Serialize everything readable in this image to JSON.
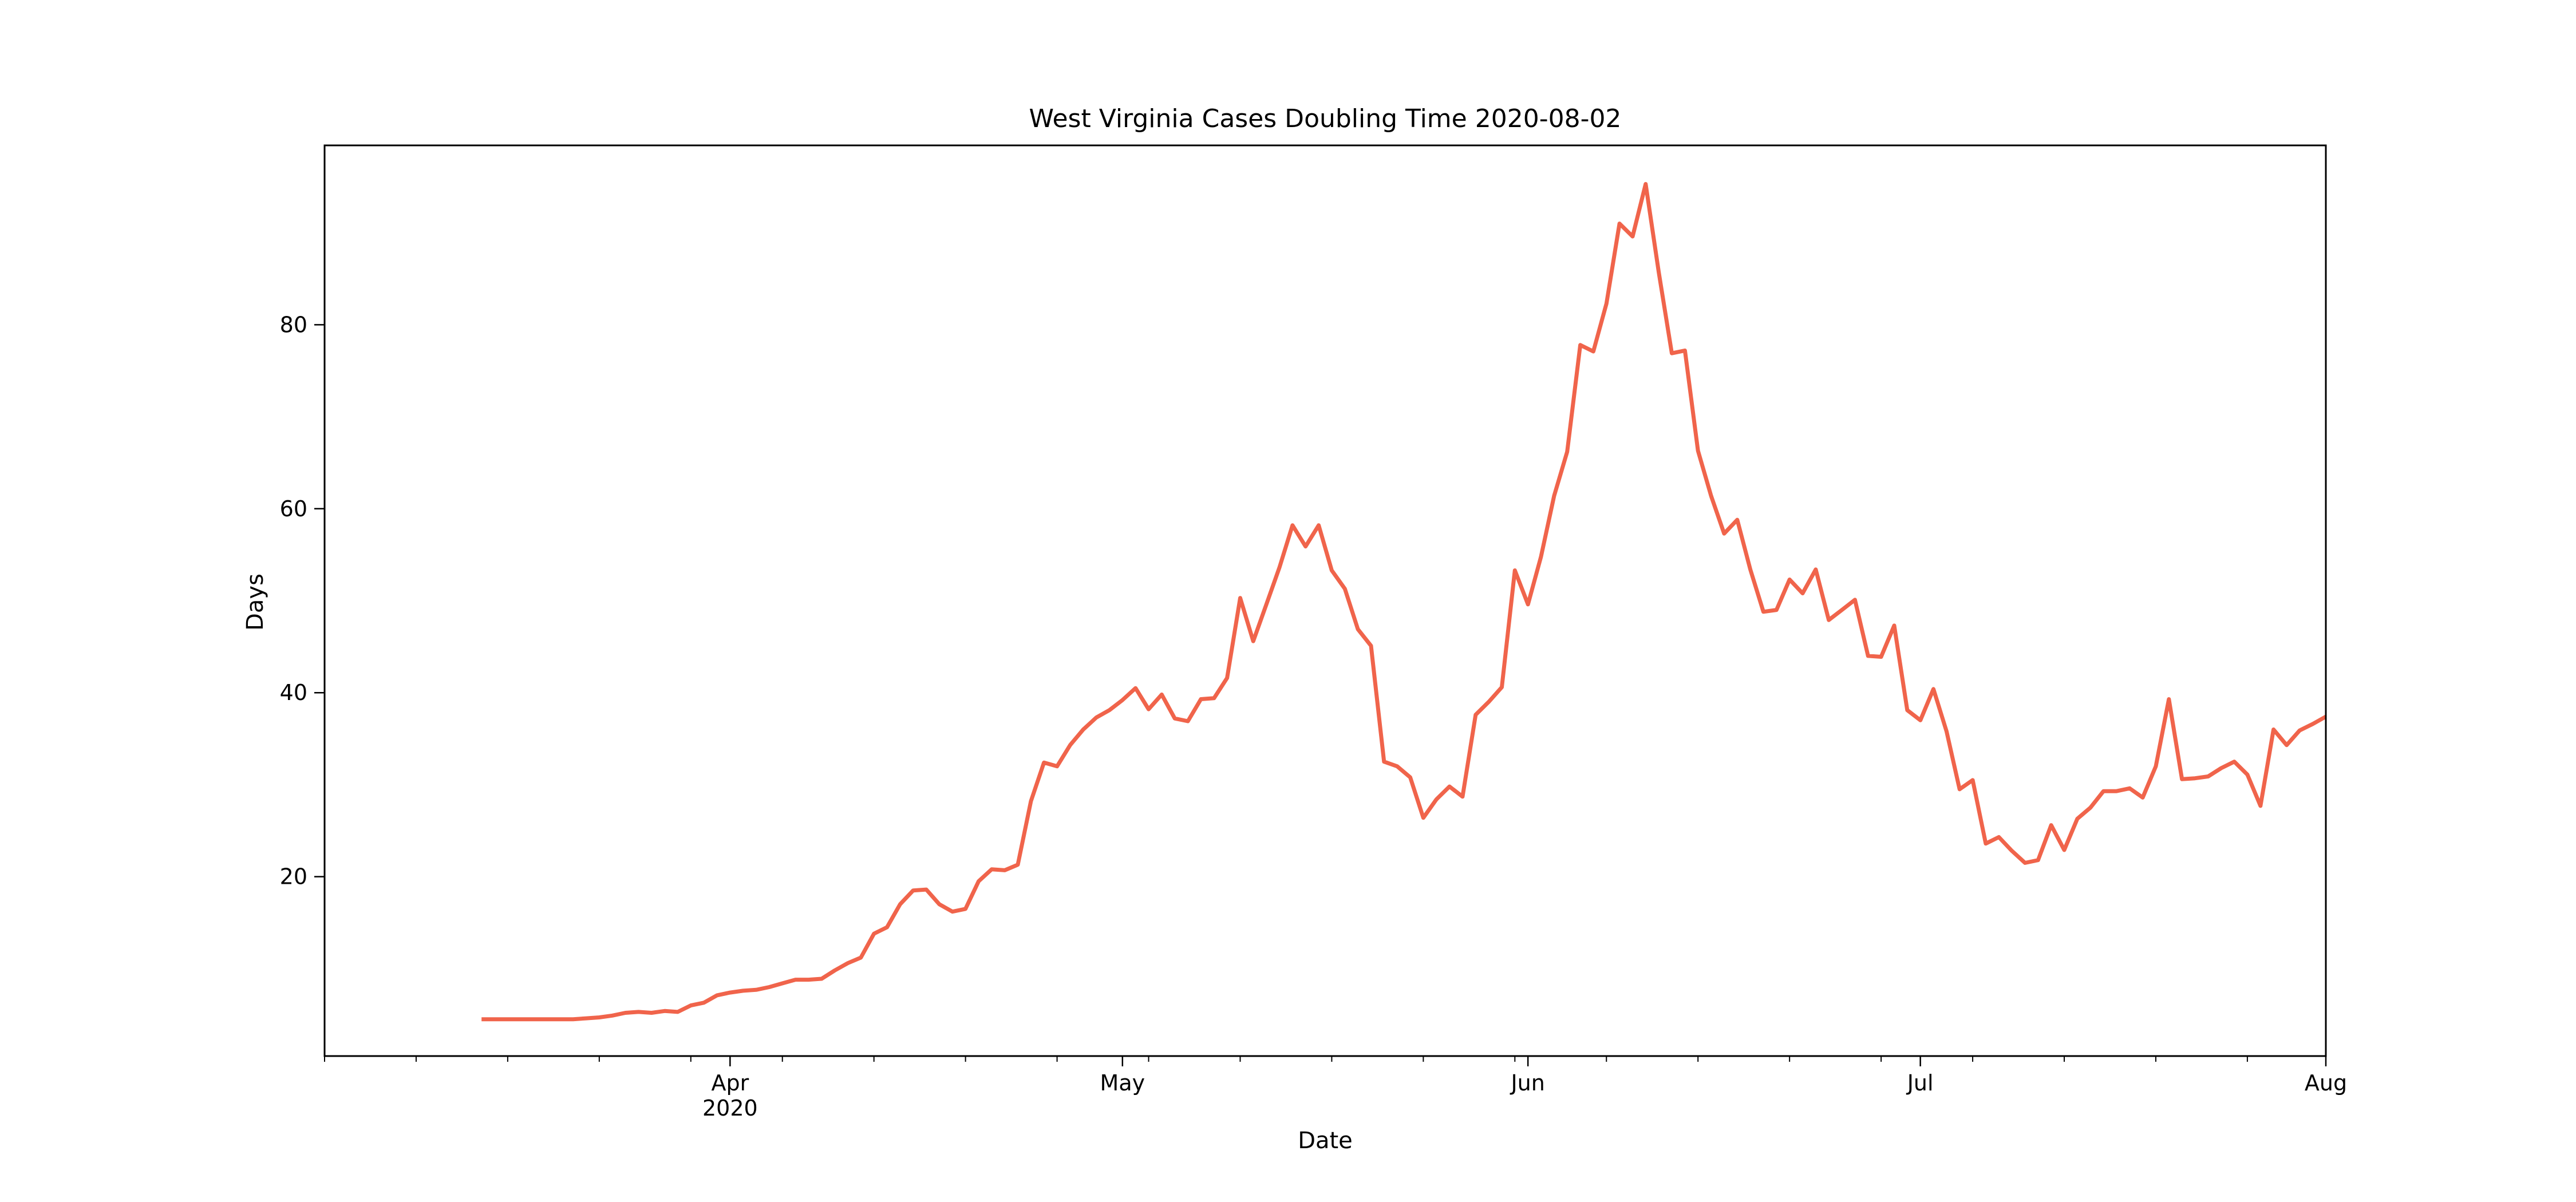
{
  "chart_data": {
    "type": "line",
    "title": "West Virginia Cases Doubling Time 2020-08-02",
    "xlabel": "Date",
    "ylabel": "Days",
    "xlim": [
      "2020-03-01",
      "2020-08-01"
    ],
    "ylim": [
      0.5,
      99.5
    ],
    "grid": false,
    "legend": "none",
    "x_ticks": [
      {
        "date": "2020-04-01",
        "label": "Apr",
        "sublabel": "2020"
      },
      {
        "date": "2020-05-01",
        "label": "May",
        "sublabel": ""
      },
      {
        "date": "2020-06-01",
        "label": "Jun",
        "sublabel": ""
      },
      {
        "date": "2020-07-01",
        "label": "Jul",
        "sublabel": ""
      },
      {
        "date": "2020-08-01",
        "label": "Aug",
        "sublabel": ""
      }
    ],
    "y_ticks": [
      20,
      40,
      60,
      80
    ],
    "series": [
      {
        "color": "#f0644b",
        "points": [
          [
            "2020-03-13",
            4.5
          ],
          [
            "2020-03-14",
            4.5
          ],
          [
            "2020-03-15",
            4.5
          ],
          [
            "2020-03-16",
            4.5
          ],
          [
            "2020-03-17",
            4.5
          ],
          [
            "2020-03-18",
            4.5
          ],
          [
            "2020-03-19",
            4.5
          ],
          [
            "2020-03-20",
            4.5
          ],
          [
            "2020-03-21",
            4.6
          ],
          [
            "2020-03-22",
            4.7
          ],
          [
            "2020-03-23",
            4.9
          ],
          [
            "2020-03-24",
            5.2
          ],
          [
            "2020-03-25",
            5.3
          ],
          [
            "2020-03-26",
            5.2
          ],
          [
            "2020-03-27",
            5.4
          ],
          [
            "2020-03-28",
            5.3
          ],
          [
            "2020-03-29",
            6.0
          ],
          [
            "2020-03-30",
            6.3
          ],
          [
            "2020-03-31",
            7.1
          ],
          [
            "2020-04-01",
            7.4
          ],
          [
            "2020-04-02",
            7.6
          ],
          [
            "2020-04-03",
            7.7
          ],
          [
            "2020-04-04",
            8.0
          ],
          [
            "2020-04-05",
            8.4
          ],
          [
            "2020-04-06",
            8.8
          ],
          [
            "2020-04-07",
            8.8
          ],
          [
            "2020-04-08",
            8.9
          ],
          [
            "2020-04-09",
            9.8
          ],
          [
            "2020-04-10",
            10.6
          ],
          [
            "2020-04-11",
            11.2
          ],
          [
            "2020-04-12",
            13.8
          ],
          [
            "2020-04-13",
            14.5
          ],
          [
            "2020-04-14",
            17.0
          ],
          [
            "2020-04-15",
            18.5
          ],
          [
            "2020-04-16",
            18.6
          ],
          [
            "2020-04-17",
            17.0
          ],
          [
            "2020-04-18",
            16.2
          ],
          [
            "2020-04-19",
            16.5
          ],
          [
            "2020-04-20",
            19.5
          ],
          [
            "2020-04-21",
            20.8
          ],
          [
            "2020-04-22",
            20.7
          ],
          [
            "2020-04-23",
            21.3
          ],
          [
            "2020-04-24",
            28.2
          ],
          [
            "2020-04-25",
            32.4
          ],
          [
            "2020-04-26",
            32.0
          ],
          [
            "2020-04-27",
            34.3
          ],
          [
            "2020-04-28",
            36.0
          ],
          [
            "2020-04-29",
            37.3
          ],
          [
            "2020-04-30",
            38.1
          ],
          [
            "2020-05-01",
            39.2
          ],
          [
            "2020-05-02",
            40.5
          ],
          [
            "2020-05-03",
            38.2
          ],
          [
            "2020-05-04",
            39.8
          ],
          [
            "2020-05-05",
            37.2
          ],
          [
            "2020-05-06",
            36.9
          ],
          [
            "2020-05-07",
            39.3
          ],
          [
            "2020-05-08",
            39.4
          ],
          [
            "2020-05-09",
            41.6
          ],
          [
            "2020-05-10",
            50.3
          ],
          [
            "2020-05-11",
            45.6
          ],
          [
            "2020-05-12",
            49.6
          ],
          [
            "2020-05-13",
            53.6
          ],
          [
            "2020-05-14",
            58.2
          ],
          [
            "2020-05-15",
            55.9
          ],
          [
            "2020-05-16",
            58.2
          ],
          [
            "2020-05-17",
            53.3
          ],
          [
            "2020-05-18",
            51.3
          ],
          [
            "2020-05-19",
            46.9
          ],
          [
            "2020-05-20",
            45.1
          ],
          [
            "2020-05-21",
            32.5
          ],
          [
            "2020-05-22",
            32.0
          ],
          [
            "2020-05-23",
            30.8
          ],
          [
            "2020-05-24",
            26.4
          ],
          [
            "2020-05-25",
            28.4
          ],
          [
            "2020-05-26",
            29.8
          ],
          [
            "2020-05-27",
            28.7
          ],
          [
            "2020-05-28",
            37.6
          ],
          [
            "2020-05-29",
            39.0
          ],
          [
            "2020-05-30",
            40.6
          ],
          [
            "2020-05-31",
            53.3
          ],
          [
            "2020-06-01",
            49.6
          ],
          [
            "2020-06-02",
            54.8
          ],
          [
            "2020-06-03",
            61.4
          ],
          [
            "2020-06-04",
            66.2
          ],
          [
            "2020-06-05",
            77.8
          ],
          [
            "2020-06-06",
            77.1
          ],
          [
            "2020-06-07",
            82.3
          ],
          [
            "2020-06-08",
            91.0
          ],
          [
            "2020-06-09",
            89.6
          ],
          [
            "2020-06-10",
            95.3
          ],
          [
            "2020-06-11",
            85.7
          ],
          [
            "2020-06-12",
            76.9
          ],
          [
            "2020-06-13",
            77.2
          ],
          [
            "2020-06-14",
            66.3
          ],
          [
            "2020-06-15",
            61.4
          ],
          [
            "2020-06-16",
            57.3
          ],
          [
            "2020-06-17",
            58.8
          ],
          [
            "2020-06-18",
            53.4
          ],
          [
            "2020-06-19",
            48.8
          ],
          [
            "2020-06-20",
            49.0
          ],
          [
            "2020-06-21",
            52.3
          ],
          [
            "2020-06-22",
            50.8
          ],
          [
            "2020-06-23",
            53.4
          ],
          [
            "2020-06-24",
            47.9
          ],
          [
            "2020-06-25",
            49.0
          ],
          [
            "2020-06-26",
            50.1
          ],
          [
            "2020-06-27",
            44.0
          ],
          [
            "2020-06-28",
            43.9
          ],
          [
            "2020-06-29",
            47.3
          ],
          [
            "2020-06-30",
            38.1
          ],
          [
            "2020-07-01",
            37.0
          ],
          [
            "2020-07-02",
            40.4
          ],
          [
            "2020-07-03",
            35.8
          ],
          [
            "2020-07-04",
            29.5
          ],
          [
            "2020-07-05",
            30.5
          ],
          [
            "2020-07-06",
            23.6
          ],
          [
            "2020-07-07",
            24.3
          ],
          [
            "2020-07-08",
            22.8
          ],
          [
            "2020-07-09",
            21.5
          ],
          [
            "2020-07-10",
            21.8
          ],
          [
            "2020-07-11",
            25.6
          ],
          [
            "2020-07-12",
            22.9
          ],
          [
            "2020-07-13",
            26.3
          ],
          [
            "2020-07-14",
            27.5
          ],
          [
            "2020-07-15",
            29.3
          ],
          [
            "2020-07-16",
            29.3
          ],
          [
            "2020-07-17",
            29.6
          ],
          [
            "2020-07-18",
            28.6
          ],
          [
            "2020-07-19",
            32.0
          ],
          [
            "2020-07-20",
            39.3
          ],
          [
            "2020-07-21",
            30.6
          ],
          [
            "2020-07-22",
            30.7
          ],
          [
            "2020-07-23",
            30.9
          ],
          [
            "2020-07-24",
            31.8
          ],
          [
            "2020-07-25",
            32.5
          ],
          [
            "2020-07-26",
            31.1
          ],
          [
            "2020-07-27",
            27.7
          ],
          [
            "2020-07-28",
            36.0
          ],
          [
            "2020-07-29",
            34.3
          ],
          [
            "2020-07-30",
            35.9
          ],
          [
            "2020-07-31",
            36.6
          ],
          [
            "2020-08-01",
            37.4
          ]
        ]
      }
    ]
  }
}
